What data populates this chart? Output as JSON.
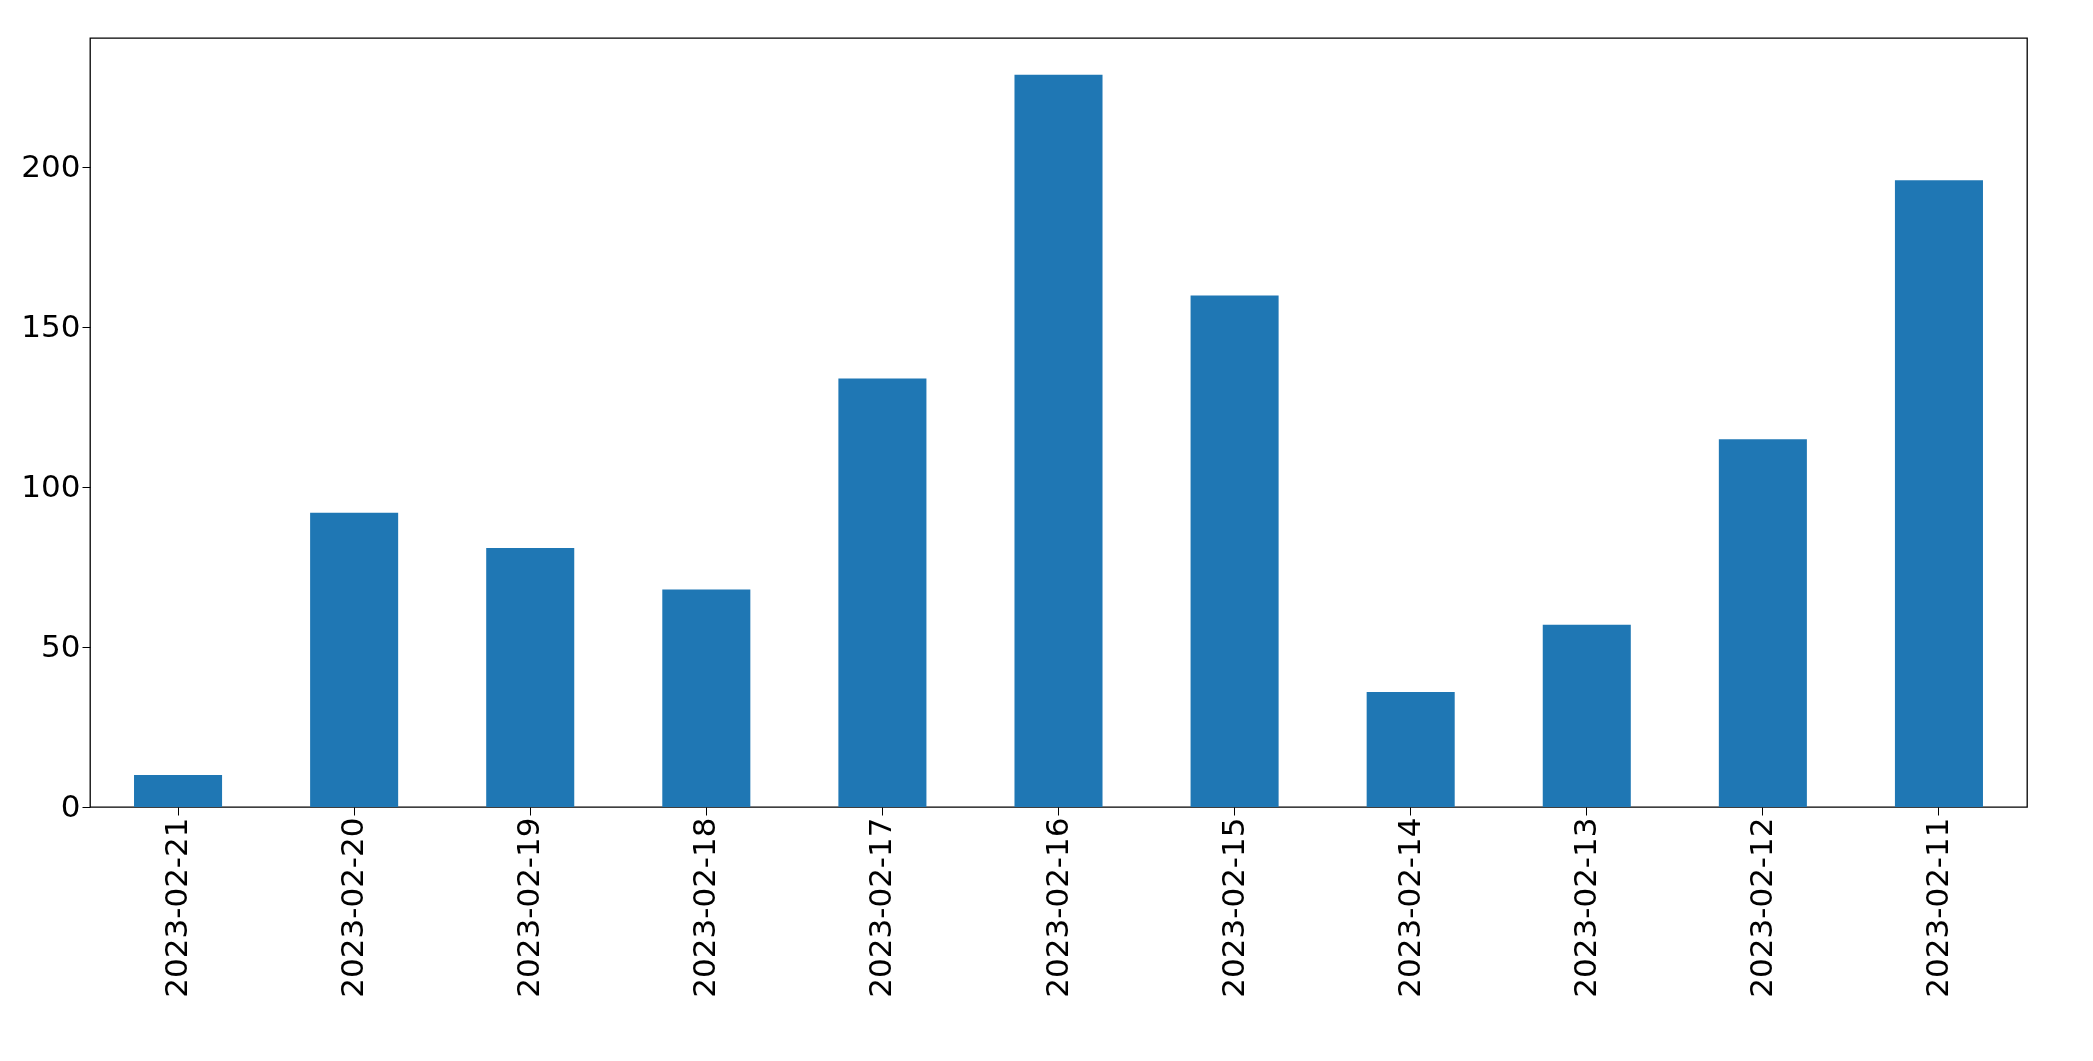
{
  "chart_data": {
    "type": "bar",
    "categories": [
      "2023-02-21",
      "2023-02-20",
      "2023-02-19",
      "2023-02-18",
      "2023-02-17",
      "2023-02-16",
      "2023-02-15",
      "2023-02-14",
      "2023-02-13",
      "2023-02-12",
      "2023-02-11"
    ],
    "values": [
      10,
      92,
      81,
      68,
      134,
      229,
      160,
      36,
      57,
      115,
      196
    ],
    "color": "#1f77b4",
    "ylim": [
      0,
      240.5
    ],
    "yticks": [
      0,
      50,
      100,
      150,
      200
    ],
    "grid": false
  }
}
